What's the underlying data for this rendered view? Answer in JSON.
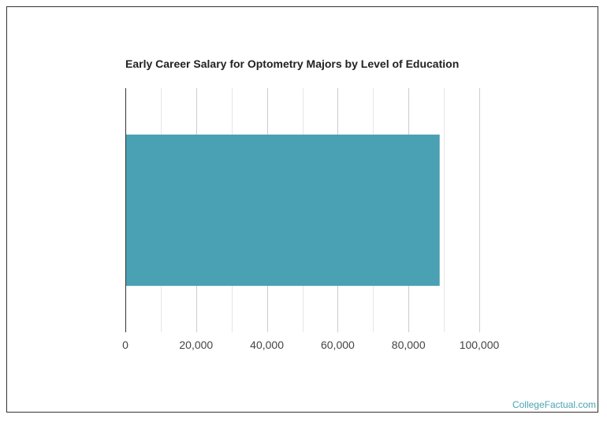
{
  "chart_data": {
    "type": "bar",
    "orientation": "horizontal",
    "title": "Early Career Salary for Optometry Majors by Level of Education",
    "categories": [
      ""
    ],
    "values": [
      88800
    ],
    "xlim": [
      0,
      100000
    ],
    "xticks": [
      0,
      20000,
      40000,
      60000,
      80000,
      100000
    ],
    "xtick_labels": [
      "0",
      "20,000",
      "40,000",
      "60,000",
      "80,000",
      "100,000"
    ],
    "bar_color": "#4aa1b3",
    "grid": true
  },
  "watermark": "CollegeFactual.com"
}
